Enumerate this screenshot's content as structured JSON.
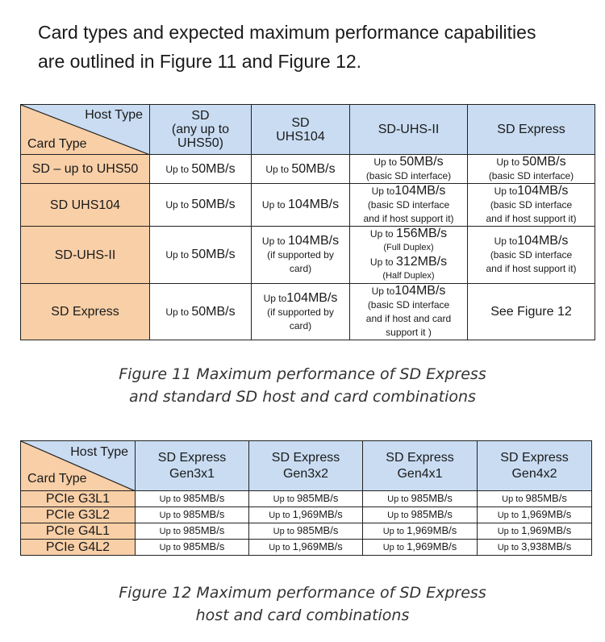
{
  "intro": {
    "line1": "Card types and expected maximum performance capabilities",
    "line2": "are outlined in Figure 11 and Figure 12."
  },
  "table1": {
    "corner_host": "Host Type",
    "corner_card": "Card Type",
    "headers": [
      {
        "l1": "SD",
        "l2": "(any up to",
        "l3": "UHS50)"
      },
      {
        "l1": "SD",
        "l2": "UHS104"
      },
      {
        "l1": "SD-UHS-II"
      },
      {
        "l1": "SD Express"
      }
    ],
    "rows": [
      {
        "label": "SD – up to UHS50",
        "c1": {
          "pre": "Up to ",
          "val": "50MB/s"
        },
        "c2": {
          "pre": "Up to ",
          "val": "50MB/s"
        },
        "c3": {
          "pre": "Up to ",
          "val": "50MB/s",
          "note": "(basic SD interface)"
        },
        "c4": {
          "pre": "Up to ",
          "val": "50MB/s",
          "note": "(basic SD interface)"
        }
      },
      {
        "label": "SD UHS104",
        "c1": {
          "pre": "Up to ",
          "val": "50MB/s"
        },
        "c2": {
          "pre": "Up to ",
          "val": "104MB/s"
        },
        "c3": {
          "pre": "Up to",
          "val": "104MB/s",
          "note1": "(basic SD interface",
          "note2": "and if host support it)"
        },
        "c4": {
          "pre": "Up to",
          "val": "104MB/s",
          "note1": "(basic SD interface",
          "note2": "and if host support it)"
        }
      },
      {
        "label": "SD-UHS-II",
        "c1": {
          "pre": "Up to ",
          "val": "50MB/s"
        },
        "c2": {
          "pre": "Up to ",
          "val": "104MB/s",
          "note1": "(if supported by",
          "note2": "card)"
        },
        "c3": {
          "pre1": "Up to ",
          "val1": "156MB/s",
          "note1": "(Full Duplex)",
          "pre2": "Up to ",
          "val2": "312MB/s",
          "note2": "(Half Duplex)"
        },
        "c4": {
          "pre": "Up to",
          "val": "104MB/s",
          "note1": "(basic SD interface",
          "note2": "and if host support it)"
        }
      },
      {
        "label": "SD Express",
        "c1": {
          "pre": "Up to ",
          "val": "50MB/s"
        },
        "c2": {
          "pre": "Up to",
          "val": "104MB/s",
          "note1": "(if supported by",
          "note2": "card)"
        },
        "c3": {
          "pre": "Up to",
          "val": "104MB/s",
          "note1": "(basic SD interface",
          "note2": "and if host and card",
          "note3": "support it )"
        },
        "c4": {
          "val": "See Figure 12"
        }
      }
    ]
  },
  "caption1": {
    "line1": "Figure 11 Maximum performance of SD Express",
    "line2": "and standard SD host and card combinations"
  },
  "table2": {
    "corner_host": "Host Type",
    "corner_card": "Card Type",
    "headers": [
      {
        "l1": "SD Express",
        "l2": "Gen3x1"
      },
      {
        "l1": "SD Express",
        "l2": "Gen3x2"
      },
      {
        "l1": "SD Express",
        "l2": "Gen4x1"
      },
      {
        "l1": "SD Express",
        "l2": "Gen4x2"
      }
    ],
    "rows": [
      {
        "label": "PCIe G3L1",
        "cells": [
          {
            "pre": "Up to ",
            "val": "985MB/s"
          },
          {
            "pre": "Up to ",
            "val": "985MB/s"
          },
          {
            "pre": "Up to ",
            "val": "985MB/s"
          },
          {
            "pre": "Up to ",
            "val": "985MB/s"
          }
        ]
      },
      {
        "label": "PCIe G3L2",
        "cells": [
          {
            "pre": "Up to ",
            "val": "985MB/s"
          },
          {
            "pre": "Up to ",
            "val": "1,969MB/s"
          },
          {
            "pre": "Up to ",
            "val": "985MB/s"
          },
          {
            "pre": "Up to ",
            "val": "1,969MB/s"
          }
        ]
      },
      {
        "label": "PCIe G4L1",
        "cells": [
          {
            "pre": "Up to ",
            "val": "985MB/s"
          },
          {
            "pre": "Up to ",
            "val": "985MB/s"
          },
          {
            "pre": "Up to ",
            "val": "1,969MB/s"
          },
          {
            "pre": "Up to ",
            "val": "1,969MB/s"
          }
        ]
      },
      {
        "label": "PCIe G4L2",
        "cells": [
          {
            "pre": "Up to ",
            "val": "985MB/s"
          },
          {
            "pre": "Up to ",
            "val": "1,969MB/s"
          },
          {
            "pre": "Up to ",
            "val": "1,969MB/s"
          },
          {
            "pre": "Up to  ",
            "val": "3,938MB/s"
          }
        ]
      }
    ]
  },
  "caption2": {
    "line1": "Figure 12 Maximum performance of SD Express",
    "line2": "host and card combinations"
  },
  "colors": {
    "row_header_bg": "#f8cfa7",
    "col_header_bg": "#c9dcf2",
    "border": "#222222"
  }
}
